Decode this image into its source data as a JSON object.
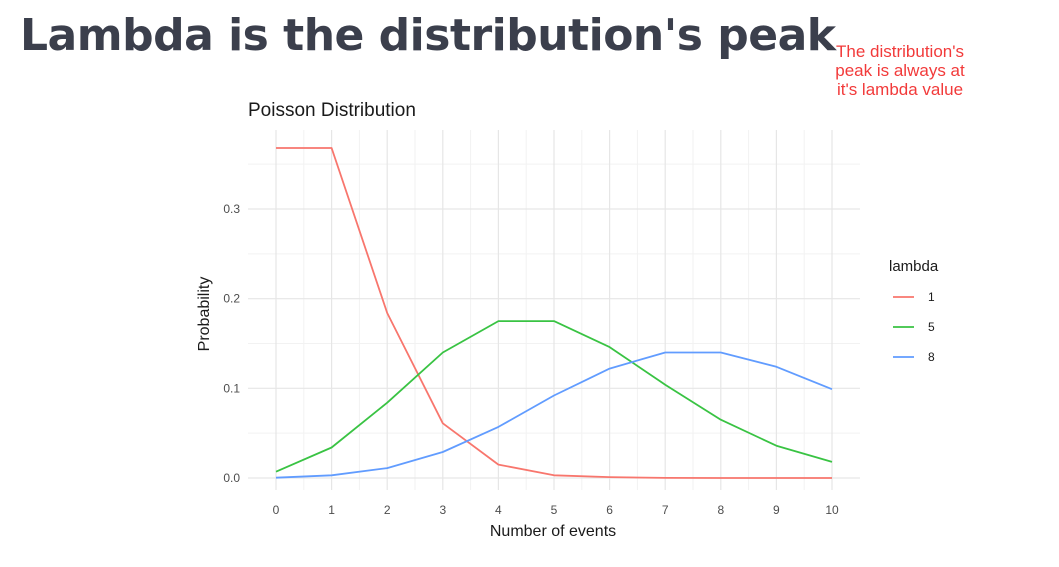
{
  "slide": {
    "title": "Lambda is the distribution's peak",
    "annotation_lines": [
      "The distribution's",
      "peak is always at",
      "it's lambda value"
    ],
    "annotation_color": "#f23a3a"
  },
  "chart_data": {
    "type": "line",
    "title": "Poisson Distribution",
    "xlabel": "Number of events",
    "ylabel": "Probability",
    "x": [
      0,
      1,
      2,
      3,
      4,
      5,
      6,
      7,
      8,
      9,
      10
    ],
    "xlim": [
      0,
      10
    ],
    "ylim": [
      0,
      0.368
    ],
    "y_ticks": [
      0.0,
      0.1,
      0.2,
      0.3
    ],
    "y_tick_labels": [
      "0.0",
      "0.1",
      "0.2",
      "0.3"
    ],
    "x_tick_labels": [
      "0",
      "1",
      "2",
      "3",
      "4",
      "5",
      "6",
      "7",
      "8",
      "9",
      "10"
    ],
    "grid": true,
    "legend": {
      "title": "lambda",
      "position": "right"
    },
    "series": [
      {
        "name": "1",
        "color": "#f8766d",
        "values": [
          0.368,
          0.368,
          0.184,
          0.061,
          0.015,
          0.003,
          0.001,
          0.0001,
          0.0,
          0.0,
          0.0
        ]
      },
      {
        "name": "5",
        "color": "#39c343",
        "values": [
          0.007,
          0.034,
          0.084,
          0.14,
          0.175,
          0.175,
          0.146,
          0.104,
          0.065,
          0.036,
          0.018
        ]
      },
      {
        "name": "8",
        "color": "#619cff",
        "values": [
          0.0003,
          0.003,
          0.011,
          0.029,
          0.057,
          0.092,
          0.122,
          0.14,
          0.14,
          0.124,
          0.099
        ]
      }
    ]
  }
}
